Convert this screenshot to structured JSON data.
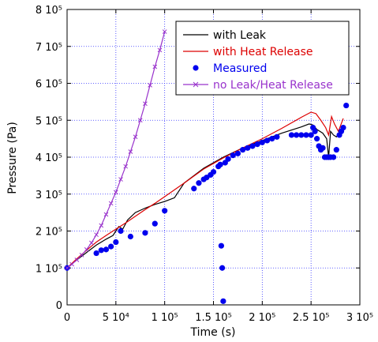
{
  "chart_data": {
    "type": "line",
    "title": "",
    "xlabel": "Time (s)",
    "ylabel": "Pressure (Pa)",
    "xlim": [
      0,
      300000
    ],
    "ylim": [
      0,
      800000
    ],
    "grid": true,
    "legend_placement": "top-right",
    "x_ticks": [
      {
        "value": 0,
        "label": "0"
      },
      {
        "value": 50000,
        "label": "5 10⁴"
      },
      {
        "value": 100000,
        "label": "1 10⁵"
      },
      {
        "value": 150000,
        "label": "1.5 10⁵"
      },
      {
        "value": 200000,
        "label": "2 10⁵"
      },
      {
        "value": 250000,
        "label": "2.5 10⁵"
      },
      {
        "value": 300000,
        "label": "3 10⁵"
      }
    ],
    "y_ticks": [
      {
        "value": 0,
        "label": "0"
      },
      {
        "value": 100000,
        "label": "1 10⁵"
      },
      {
        "value": 200000,
        "label": "2 10⁵"
      },
      {
        "value": 300000,
        "label": "3 10⁵"
      },
      {
        "value": 400000,
        "label": "4 10⁵"
      },
      {
        "value": 500000,
        "label": "5 10⁵"
      },
      {
        "value": 600000,
        "label": "6 10⁵"
      },
      {
        "value": 700000,
        "label": "7 10⁵"
      },
      {
        "value": 800000,
        "label": "8 10⁵"
      }
    ],
    "series": [
      {
        "name": "with Leak",
        "style": "line",
        "color": "#000000",
        "x": [
          0,
          10000,
          20000,
          30000,
          40000,
          47000,
          50000,
          53000,
          57000,
          62000,
          70000,
          80000,
          90000,
          100000,
          110000,
          120000,
          140000,
          160000,
          180000,
          200000,
          220000,
          240000,
          248000,
          252000,
          256000,
          262000,
          266000,
          268000,
          270000,
          273000,
          276000,
          280000,
          285000
        ],
        "y": [
          100000,
          122000,
          142000,
          162000,
          178000,
          188000,
          200000,
          212000,
          205000,
          230000,
          250000,
          262000,
          272000,
          280000,
          290000,
          330000,
          370000,
          400000,
          425000,
          445000,
          465000,
          482000,
          490000,
          487000,
          475000,
          465000,
          450000,
          400000,
          470000,
          460000,
          455000,
          470000,
          480000
        ]
      },
      {
        "name": "with Heat Release",
        "style": "line",
        "color": "#dd0000",
        "x": [
          0,
          10000,
          20000,
          30000,
          40000,
          50000,
          60000,
          70000,
          80000,
          90000,
          100000,
          120000,
          140000,
          160000,
          180000,
          200000,
          220000,
          240000,
          250000,
          255000,
          260000,
          265000,
          268000,
          271000,
          274000,
          278000,
          283000
        ],
        "y": [
          100000,
          125000,
          148000,
          170000,
          188000,
          205000,
          222000,
          240000,
          258000,
          275000,
          293000,
          330000,
          368000,
          398000,
          425000,
          450000,
          478000,
          508000,
          522000,
          518000,
          500000,
          480000,
          460000,
          510000,
          490000,
          470000,
          505000
        ]
      },
      {
        "name": "Measured",
        "style": "scatter",
        "color": "#0000ee",
        "x": [
          0,
          30000,
          35000,
          40000,
          45000,
          50000,
          55000,
          65000,
          80000,
          90000,
          100000,
          130000,
          135000,
          140000,
          143000,
          147000,
          150000,
          155000,
          157000,
          158000,
          159000,
          160000,
          162000,
          165000,
          170000,
          175000,
          180000,
          185000,
          190000,
          195000,
          200000,
          205000,
          210000,
          215000,
          230000,
          235000,
          240000,
          245000,
          250000,
          252000,
          254000,
          256000,
          258000,
          260000,
          262000,
          264000,
          266000,
          268000,
          270000,
          273000,
          276000,
          279000,
          281000,
          283000,
          286000
        ],
        "y": [
          100000,
          140000,
          148000,
          150000,
          158000,
          170000,
          200000,
          185000,
          195000,
          220000,
          255000,
          315000,
          330000,
          340000,
          345000,
          352000,
          360000,
          375000,
          380000,
          160000,
          100000,
          10000,
          385000,
          395000,
          405000,
          410000,
          420000,
          425000,
          430000,
          435000,
          440000,
          445000,
          450000,
          455000,
          460000,
          460000,
          460000,
          460000,
          460000,
          480000,
          470000,
          450000,
          430000,
          420000,
          425000,
          400000,
          400000,
          400000,
          400000,
          400000,
          420000,
          460000,
          470000,
          480000,
          540000
        ]
      },
      {
        "name": "no Leak/Heat Release",
        "style": "line-marker",
        "color": "#9933cc",
        "x": [
          0,
          5000,
          10000,
          15000,
          20000,
          25000,
          30000,
          35000,
          40000,
          45000,
          50000,
          55000,
          60000,
          65000,
          70000,
          75000,
          80000,
          85000,
          90000,
          95000,
          100000
        ],
        "y": [
          100000,
          110000,
          122000,
          135000,
          150000,
          168000,
          190000,
          215000,
          245000,
          275000,
          305000,
          340000,
          375000,
          415000,
          455000,
          500000,
          545000,
          595000,
          645000,
          690000,
          740000
        ]
      }
    ]
  }
}
